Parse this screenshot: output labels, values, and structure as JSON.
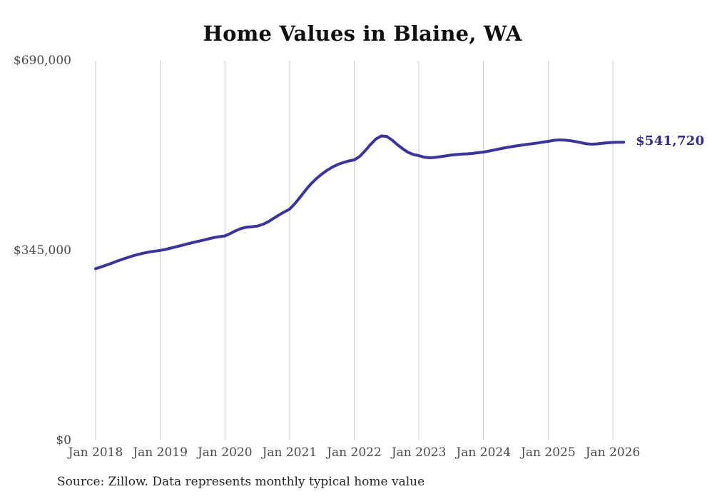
{
  "page": {
    "source_note": "Source: Zillow. Data represents monthly typical home value"
  },
  "chart_data": {
    "type": "line",
    "title": "Home Values in Blaine, WA",
    "xlabel": "",
    "ylabel": "",
    "ylim": [
      0,
      690000
    ],
    "grid": "vertical-gridlines-only",
    "legend": "none",
    "line_color": "#3a34a3",
    "end_label": "$541,720",
    "end_label_color": "#2d2a96",
    "grid_color": "#c9c9c9",
    "tick_color": "#4a4a4a",
    "x_tick_labels": [
      "Jan 2018",
      "Jan 2019",
      "Jan 2020",
      "Jan 2021",
      "Jan 2022",
      "Jan 2023",
      "Jan 2024",
      "Jan 2025",
      "Jan 2026"
    ],
    "y_ticks": [
      {
        "label": "$0",
        "value": 0
      },
      {
        "label": "$345,000",
        "value": 345000
      },
      {
        "label": "$690,000",
        "value": 690000
      }
    ],
    "series": [
      {
        "name": "Monthly typical home value",
        "x_start": "2018-01",
        "x_freq": "monthly",
        "values": [
          312000,
          315200,
          318600,
          322200,
          325800,
          329300,
          332600,
          335600,
          338300,
          340600,
          342500,
          344000,
          345300,
          347200,
          349500,
          352000,
          354500,
          357000,
          359400,
          361700,
          364000,
          366400,
          368700,
          370300,
          371600,
          376000,
          381000,
          385000,
          387500,
          388300,
          389500,
          392500,
          397200,
          403200,
          409500,
          415000,
          420200,
          430500,
          442500,
          455000,
          466500,
          476000,
          484000,
          491000,
          497000,
          501500,
          505000,
          507800,
          509700,
          516000,
          526000,
          537500,
          547500,
          553200,
          552500,
          546000,
          537500,
          530000,
          523500,
          519500,
          517500,
          514500,
          513600,
          514200,
          515500,
          517000,
          518500,
          519500,
          520200,
          520800,
          521500,
          522800,
          524000,
          525800,
          527800,
          529800,
          531800,
          533500,
          535000,
          536500,
          537800,
          539000,
          540500,
          542000,
          543400,
          545200,
          546000,
          545800,
          544800,
          543200,
          541200,
          539200,
          538300,
          538800,
          539800,
          540800,
          541500,
          541700,
          541720
        ]
      }
    ]
  }
}
